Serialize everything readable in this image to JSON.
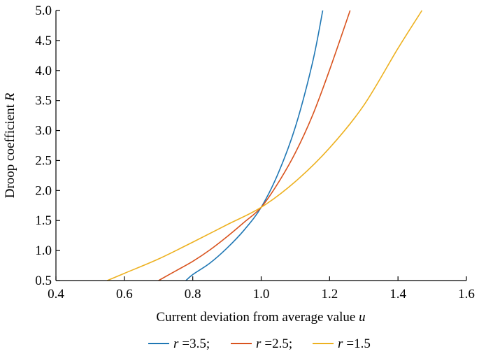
{
  "chart_data": {
    "type": "line",
    "title": "",
    "xlabel": "Current deviation from average value",
    "xlabel_var": "u",
    "ylabel": "Droop coefficient",
    "ylabel_var": "R",
    "xlim": [
      0.4,
      1.6
    ],
    "ylim": [
      0.5,
      5.0
    ],
    "xticks": [
      "0.4",
      "0.6",
      "0.8",
      "1.0",
      "1.2",
      "1.4",
      "1.6"
    ],
    "yticks": [
      "0.5",
      "1.0",
      "1.5",
      "2.0",
      "2.5",
      "3.0",
      "3.5",
      "4.0",
      "4.5",
      "5.0"
    ],
    "grid": false,
    "legend_position": "bottom",
    "series": [
      {
        "name": "r =3.5;",
        "var": "r",
        "label": "=3.5;",
        "color": "#1f77b4",
        "x": [
          0.78,
          0.8,
          0.85,
          0.9,
          0.95,
          1.0,
          1.05,
          1.1,
          1.15,
          1.18
        ],
        "y": [
          0.5,
          0.6,
          0.79,
          1.04,
          1.34,
          1.72,
          2.29,
          3.06,
          4.13,
          5.0
        ]
      },
      {
        "name": "r =2.5;",
        "var": "r",
        "label": "=2.5;",
        "color": "#d9531e",
        "x": [
          0.7,
          0.75,
          0.8,
          0.85,
          0.9,
          0.95,
          1.0,
          1.05,
          1.1,
          1.15,
          1.2,
          1.26
        ],
        "y": [
          0.5,
          0.66,
          0.82,
          1.01,
          1.23,
          1.47,
          1.72,
          2.13,
          2.63,
          3.25,
          4.01,
          5.0
        ]
      },
      {
        "name": "r =1.5",
        "var": "r",
        "label": "=1.5",
        "color": "#edb120",
        "x": [
          0.55,
          0.6,
          0.7,
          0.8,
          0.9,
          1.0,
          1.1,
          1.2,
          1.3,
          1.4,
          1.47
        ],
        "y": [
          0.5,
          0.62,
          0.86,
          1.14,
          1.43,
          1.72,
          2.15,
          2.71,
          3.42,
          4.37,
          5.0
        ]
      }
    ]
  }
}
